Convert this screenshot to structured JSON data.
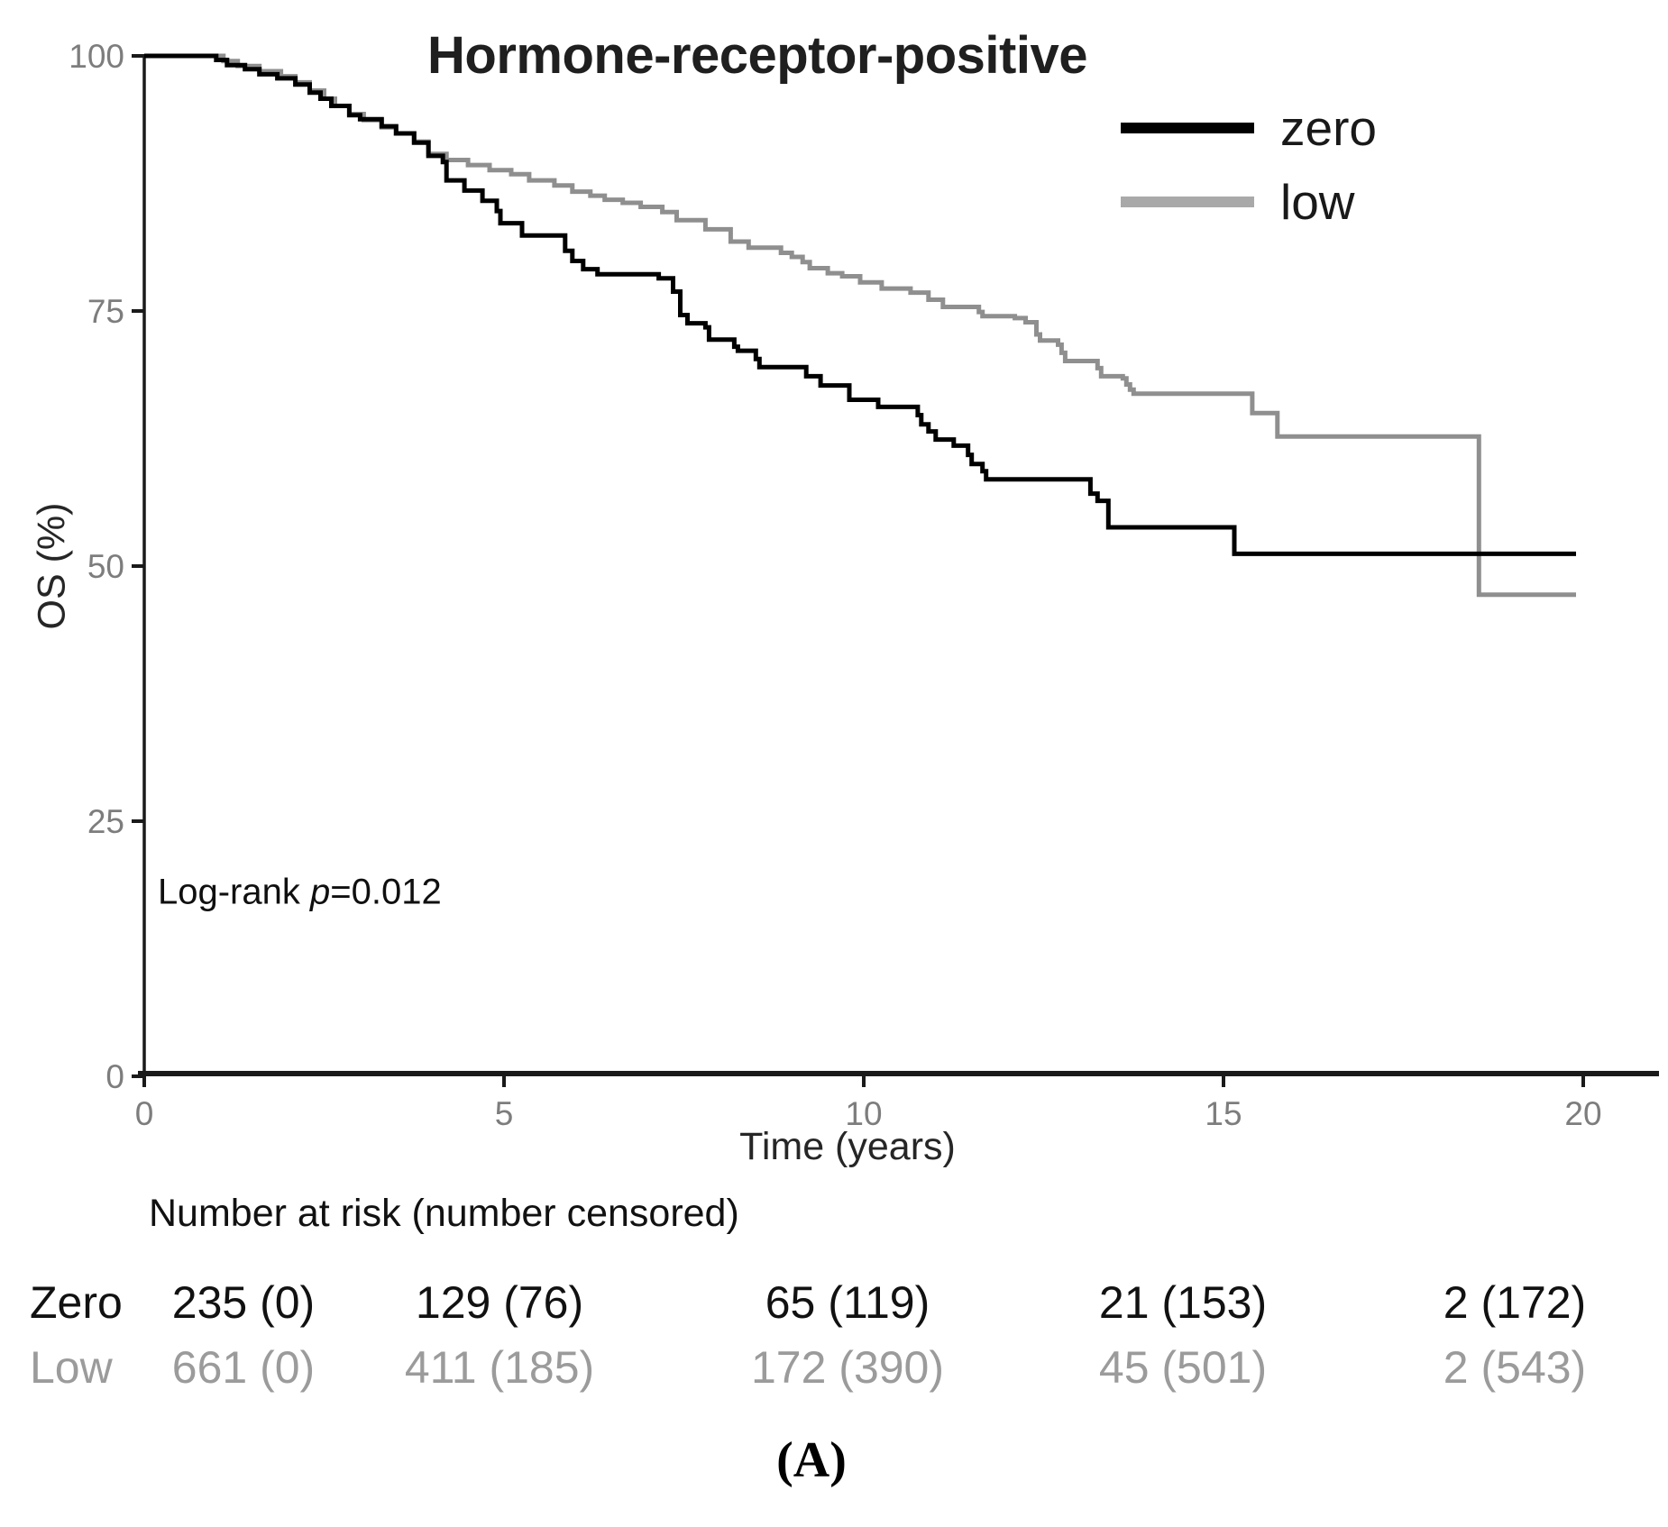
{
  "title": "Hormone-receptor-positive",
  "legend": {
    "items": [
      {
        "label": "zero",
        "color": "#000000"
      },
      {
        "label": "low",
        "color": "#a9a9a9"
      }
    ]
  },
  "annotation": {
    "prefix": "Log-rank ",
    "p_symbol": "p",
    "suffix": "=0.012"
  },
  "axes": {
    "x_label": "Time (years)",
    "y_label": "OS (%)",
    "x_ticks": [
      "0",
      "5",
      "10",
      "15",
      "20"
    ],
    "y_ticks": [
      "0",
      "25",
      "50",
      "75",
      "100"
    ]
  },
  "risk_table": {
    "header": "Number at risk (number censored)",
    "rows": [
      {
        "label": "Zero",
        "color": "#111111",
        "values": [
          "235 (0)",
          "129 (76)",
          "65 (119)",
          "21 (153)",
          "2 (172)"
        ]
      },
      {
        "label": "Low",
        "color": "#9b9b9b",
        "values": [
          "661 (0)",
          "411 (185)",
          "172 (390)",
          "45 (501)",
          "2 (543)"
        ]
      }
    ]
  },
  "caption": "(A)",
  "chart_data": {
    "type": "line",
    "subtype": "kaplan-meier-step-curve",
    "title": "Hormone-receptor-positive",
    "xlabel": "Time (years)",
    "ylabel": "OS (%)",
    "xlim": [
      0,
      20
    ],
    "ylim": [
      0,
      100
    ],
    "x_ticks": [
      0,
      5,
      10,
      15,
      20
    ],
    "y_ticks": [
      0,
      25,
      50,
      75,
      100
    ],
    "grid": false,
    "legend_position": "top-right",
    "annotation": "Log-rank p=0.012",
    "series": [
      {
        "name": "low",
        "color": "#8f8f8f",
        "stroke_width": 5,
        "points": [
          [
            0,
            100
          ],
          [
            0.9,
            100
          ],
          [
            1.1,
            99.5
          ],
          [
            1.3,
            99.0
          ],
          [
            1.6,
            98.5
          ],
          [
            1.9,
            98.0
          ],
          [
            2.1,
            97.4
          ],
          [
            2.3,
            96.6
          ],
          [
            2.5,
            95.8
          ],
          [
            2.65,
            95.1
          ],
          [
            2.85,
            94.3
          ],
          [
            3.05,
            93.7
          ],
          [
            3.3,
            93.0
          ],
          [
            3.5,
            92.4
          ],
          [
            3.75,
            91.6
          ],
          [
            3.95,
            90.4
          ],
          [
            4.2,
            89.8
          ],
          [
            4.5,
            89.3
          ],
          [
            4.8,
            88.8
          ],
          [
            5.1,
            88.4
          ],
          [
            5.35,
            87.8
          ],
          [
            5.7,
            87.3
          ],
          [
            5.95,
            86.7
          ],
          [
            6.2,
            86.3
          ],
          [
            6.4,
            85.9
          ],
          [
            6.65,
            85.6
          ],
          [
            6.9,
            85.2
          ],
          [
            7.2,
            84.7
          ],
          [
            7.4,
            83.9
          ],
          [
            7.8,
            83.0
          ],
          [
            8.15,
            81.8
          ],
          [
            8.4,
            81.2
          ],
          [
            8.85,
            80.7
          ],
          [
            9.0,
            80.3
          ],
          [
            9.15,
            79.8
          ],
          [
            9.25,
            79.2
          ],
          [
            9.5,
            78.7
          ],
          [
            9.7,
            78.4
          ],
          [
            9.95,
            77.8
          ],
          [
            10.25,
            77.2
          ],
          [
            10.65,
            76.8
          ],
          [
            10.9,
            76.1
          ],
          [
            11.1,
            75.4
          ],
          [
            11.6,
            74.9
          ],
          [
            11.65,
            74.5
          ],
          [
            12.1,
            74.3
          ],
          [
            12.25,
            73.9
          ],
          [
            12.4,
            72.7
          ],
          [
            12.45,
            72.1
          ],
          [
            12.7,
            71.7
          ],
          [
            12.75,
            70.9
          ],
          [
            12.8,
            70.1
          ],
          [
            13.25,
            69.4
          ],
          [
            13.3,
            68.6
          ],
          [
            13.6,
            68.4
          ],
          [
            13.65,
            67.8
          ],
          [
            13.7,
            67.3
          ],
          [
            13.75,
            66.9
          ],
          [
            15.4,
            65.0
          ],
          [
            15.75,
            62.7
          ],
          [
            18.55,
            47.2
          ],
          [
            19.9,
            47.2
          ]
        ]
      },
      {
        "name": "zero",
        "color": "#000000",
        "stroke_width": 5,
        "points": [
          [
            0,
            100
          ],
          [
            0.85,
            100
          ],
          [
            1.0,
            99.6
          ],
          [
            1.15,
            99.1
          ],
          [
            1.4,
            98.7
          ],
          [
            1.6,
            98.2
          ],
          [
            1.85,
            97.8
          ],
          [
            2.1,
            97.2
          ],
          [
            2.3,
            96.4
          ],
          [
            2.45,
            95.8
          ],
          [
            2.6,
            95.1
          ],
          [
            2.85,
            94.2
          ],
          [
            3.0,
            93.8
          ],
          [
            3.3,
            93.1
          ],
          [
            3.5,
            92.4
          ],
          [
            3.75,
            91.5
          ],
          [
            3.95,
            90.2
          ],
          [
            4.15,
            89.6
          ],
          [
            4.2,
            87.8
          ],
          [
            4.45,
            86.8
          ],
          [
            4.7,
            85.8
          ],
          [
            4.9,
            84.8
          ],
          [
            4.95,
            83.6
          ],
          [
            5.25,
            82.4
          ],
          [
            5.85,
            80.9
          ],
          [
            5.95,
            79.9
          ],
          [
            6.1,
            79.1
          ],
          [
            6.3,
            78.6
          ],
          [
            7.15,
            78.2
          ],
          [
            7.35,
            76.9
          ],
          [
            7.45,
            74.6
          ],
          [
            7.55,
            73.8
          ],
          [
            7.8,
            73.4
          ],
          [
            7.85,
            72.2
          ],
          [
            8.2,
            71.5
          ],
          [
            8.25,
            71.1
          ],
          [
            8.5,
            70.3
          ],
          [
            8.55,
            69.5
          ],
          [
            9.2,
            68.6
          ],
          [
            9.4,
            67.7
          ],
          [
            9.8,
            66.3
          ],
          [
            10.2,
            65.6
          ],
          [
            10.75,
            64.8
          ],
          [
            10.8,
            63.9
          ],
          [
            10.9,
            63.2
          ],
          [
            11.0,
            62.4
          ],
          [
            11.25,
            61.8
          ],
          [
            11.45,
            60.9
          ],
          [
            11.5,
            60.0
          ],
          [
            11.65,
            59.3
          ],
          [
            11.7,
            58.5
          ],
          [
            13.15,
            57.1
          ],
          [
            13.25,
            56.4
          ],
          [
            13.4,
            53.8
          ],
          [
            15.15,
            51.2
          ],
          [
            19.9,
            51.2
          ]
        ]
      }
    ],
    "risk_table": {
      "header": "Number at risk (number censored)",
      "times": [
        0,
        5,
        10,
        15,
        20
      ],
      "groups": [
        {
          "name": "Zero",
          "at_risk": [
            235,
            129,
            65,
            21,
            2
          ],
          "censored": [
            0,
            76,
            119,
            153,
            172
          ]
        },
        {
          "name": "Low",
          "at_risk": [
            661,
            411,
            172,
            45,
            2
          ],
          "censored": [
            0,
            185,
            390,
            501,
            543
          ]
        }
      ]
    }
  }
}
